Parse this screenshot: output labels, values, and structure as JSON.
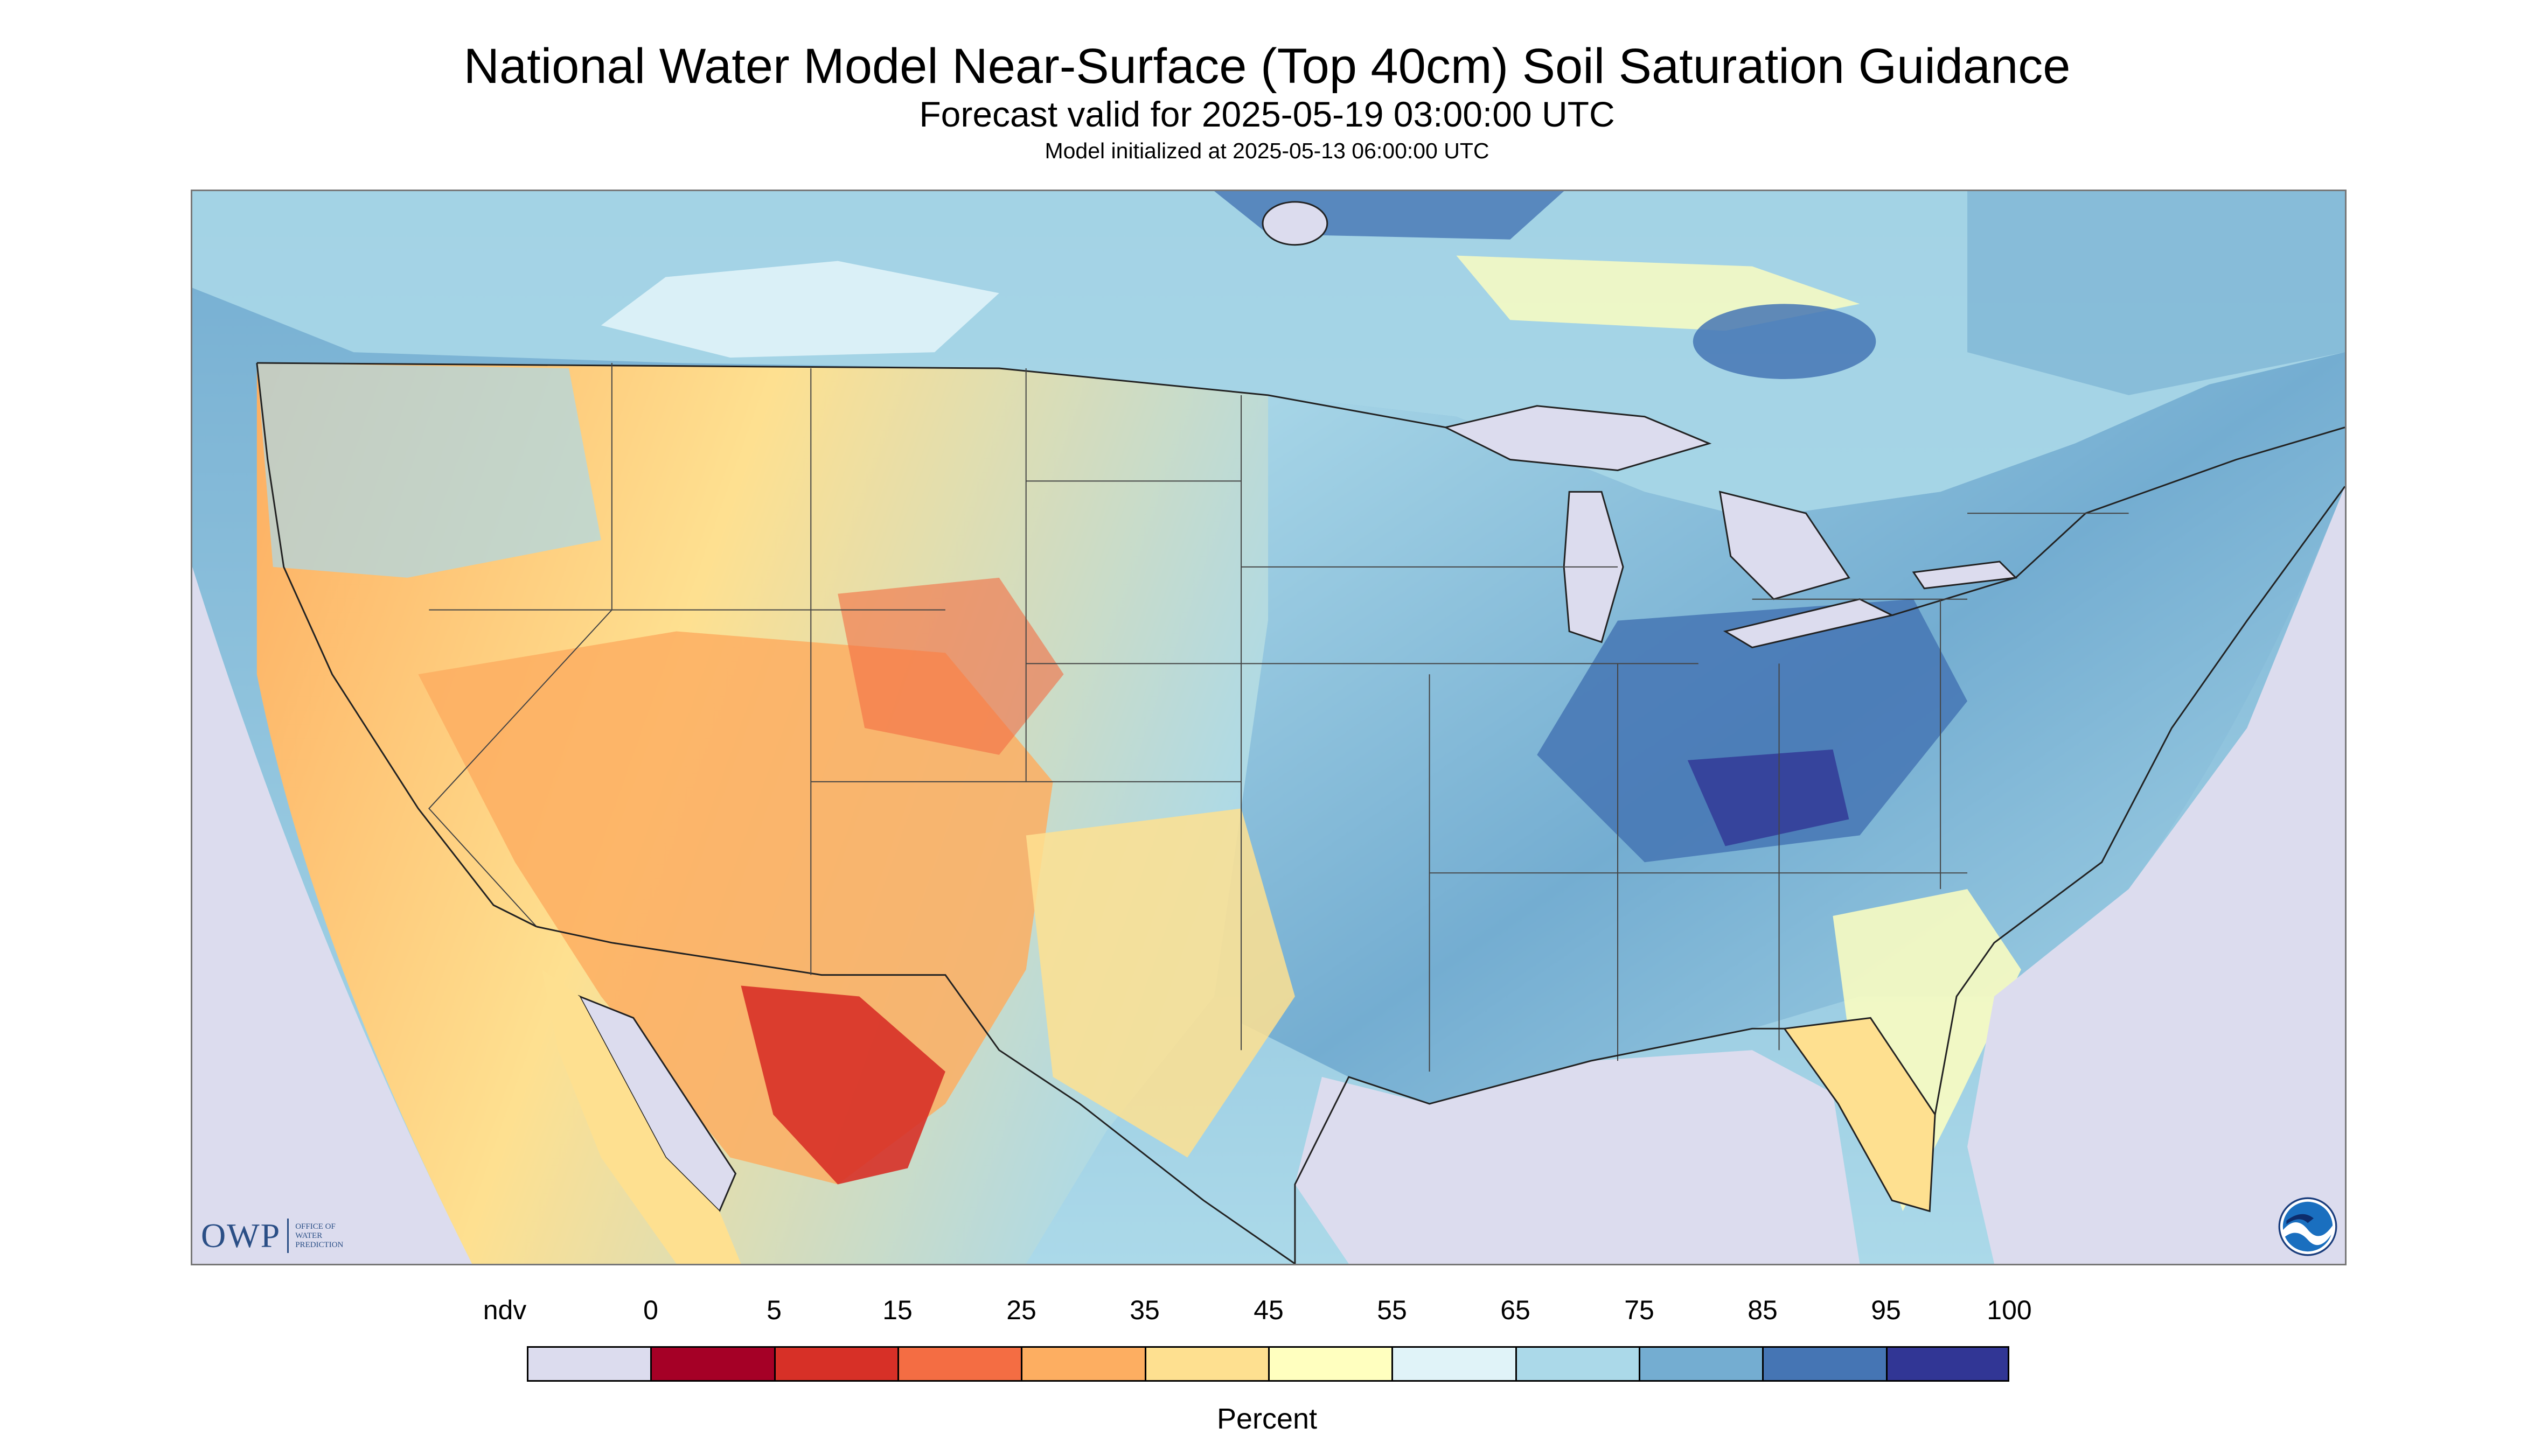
{
  "title": "National Water Model Near-Surface (Top 40cm) Soil Saturation Guidance",
  "subtitle": "Forecast valid for 2025-05-19 03:00:00 UTC",
  "init_line": "Model initialized at 2025-05-13 06:00:00 UTC",
  "logos": {
    "owp_text": "OWP",
    "owp_subtitle": [
      "OFFICE OF",
      "WATER",
      "PREDICTION"
    ],
    "noaa_text": "NOAA"
  },
  "legend": {
    "labels": [
      "ndv",
      "0",
      "5",
      "15",
      "25",
      "35",
      "45",
      "55",
      "65",
      "75",
      "85",
      "95",
      "100"
    ],
    "colors": [
      "#dcdcee",
      "#a50026",
      "#d73027",
      "#f46d43",
      "#fdae61",
      "#fee090",
      "#ffffbf",
      "#e0f3f8",
      "#abd9e9",
      "#74add1",
      "#4575b4",
      "#313695"
    ],
    "unit": "Percent"
  },
  "map": {
    "background_color": "#dcdcee",
    "ocean_color": "#dcdcee",
    "border_color": "#222222"
  }
}
